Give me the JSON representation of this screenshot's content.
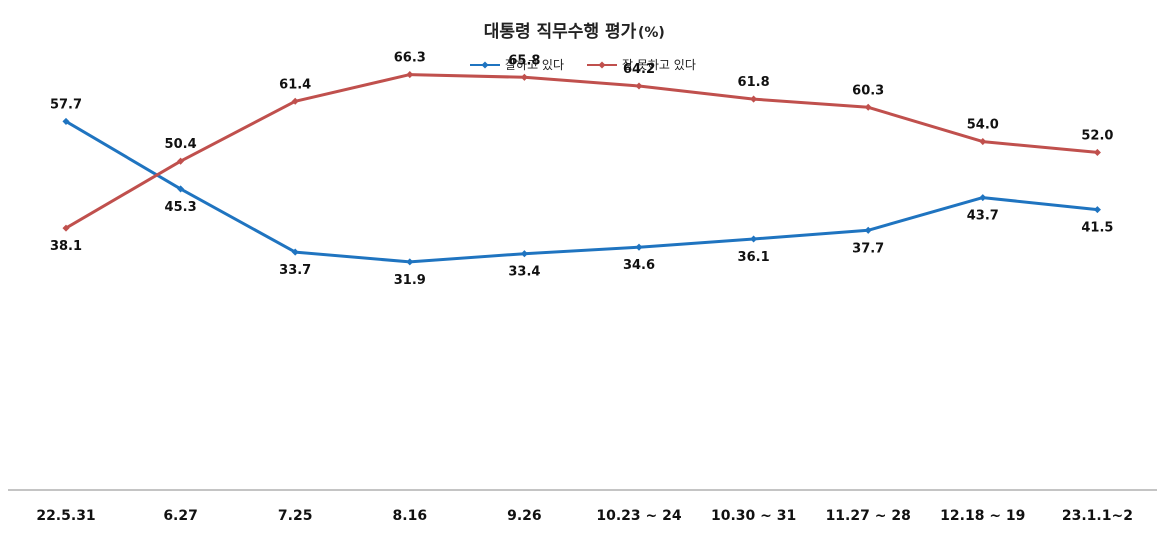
{
  "chart_data": {
    "type": "line",
    "title": "대통령 직무수행 평가",
    "title_unit": "(%)",
    "xlabel": "",
    "ylabel": "",
    "categories": [
      "22.5.31",
      "6.27",
      "7.25",
      "8.16",
      "9.26",
      "10.23 ~ 24",
      "10.30 ~ 31",
      "11.27 ~ 28",
      "12.18 ~ 19",
      "23.1.1~2"
    ],
    "series": [
      {
        "name": "잘하고 있다",
        "color": "#1f74c0",
        "values": [
          57.7,
          45.3,
          33.7,
          31.9,
          33.4,
          34.6,
          36.1,
          37.7,
          43.7,
          41.5
        ],
        "labels": [
          "57.7",
          "45.3",
          "33.7",
          "31.9",
          "33.4",
          "34.6",
          "36.1",
          "37.7",
          "43.7",
          "41.5"
        ]
      },
      {
        "name": "잘 못하고 있다",
        "color": "#c0504d",
        "values": [
          38.1,
          50.4,
          61.4,
          66.3,
          65.8,
          64.2,
          61.8,
          60.3,
          54.0,
          52.0
        ],
        "labels": [
          "38.1",
          "50.4",
          "61.4",
          "66.3",
          "65.8",
          "64.2",
          "61.8",
          "60.3",
          "54.0",
          "52.0"
        ]
      }
    ],
    "legend_position": "top-center",
    "grid": false,
    "ylim": [
      -10,
      80
    ]
  }
}
